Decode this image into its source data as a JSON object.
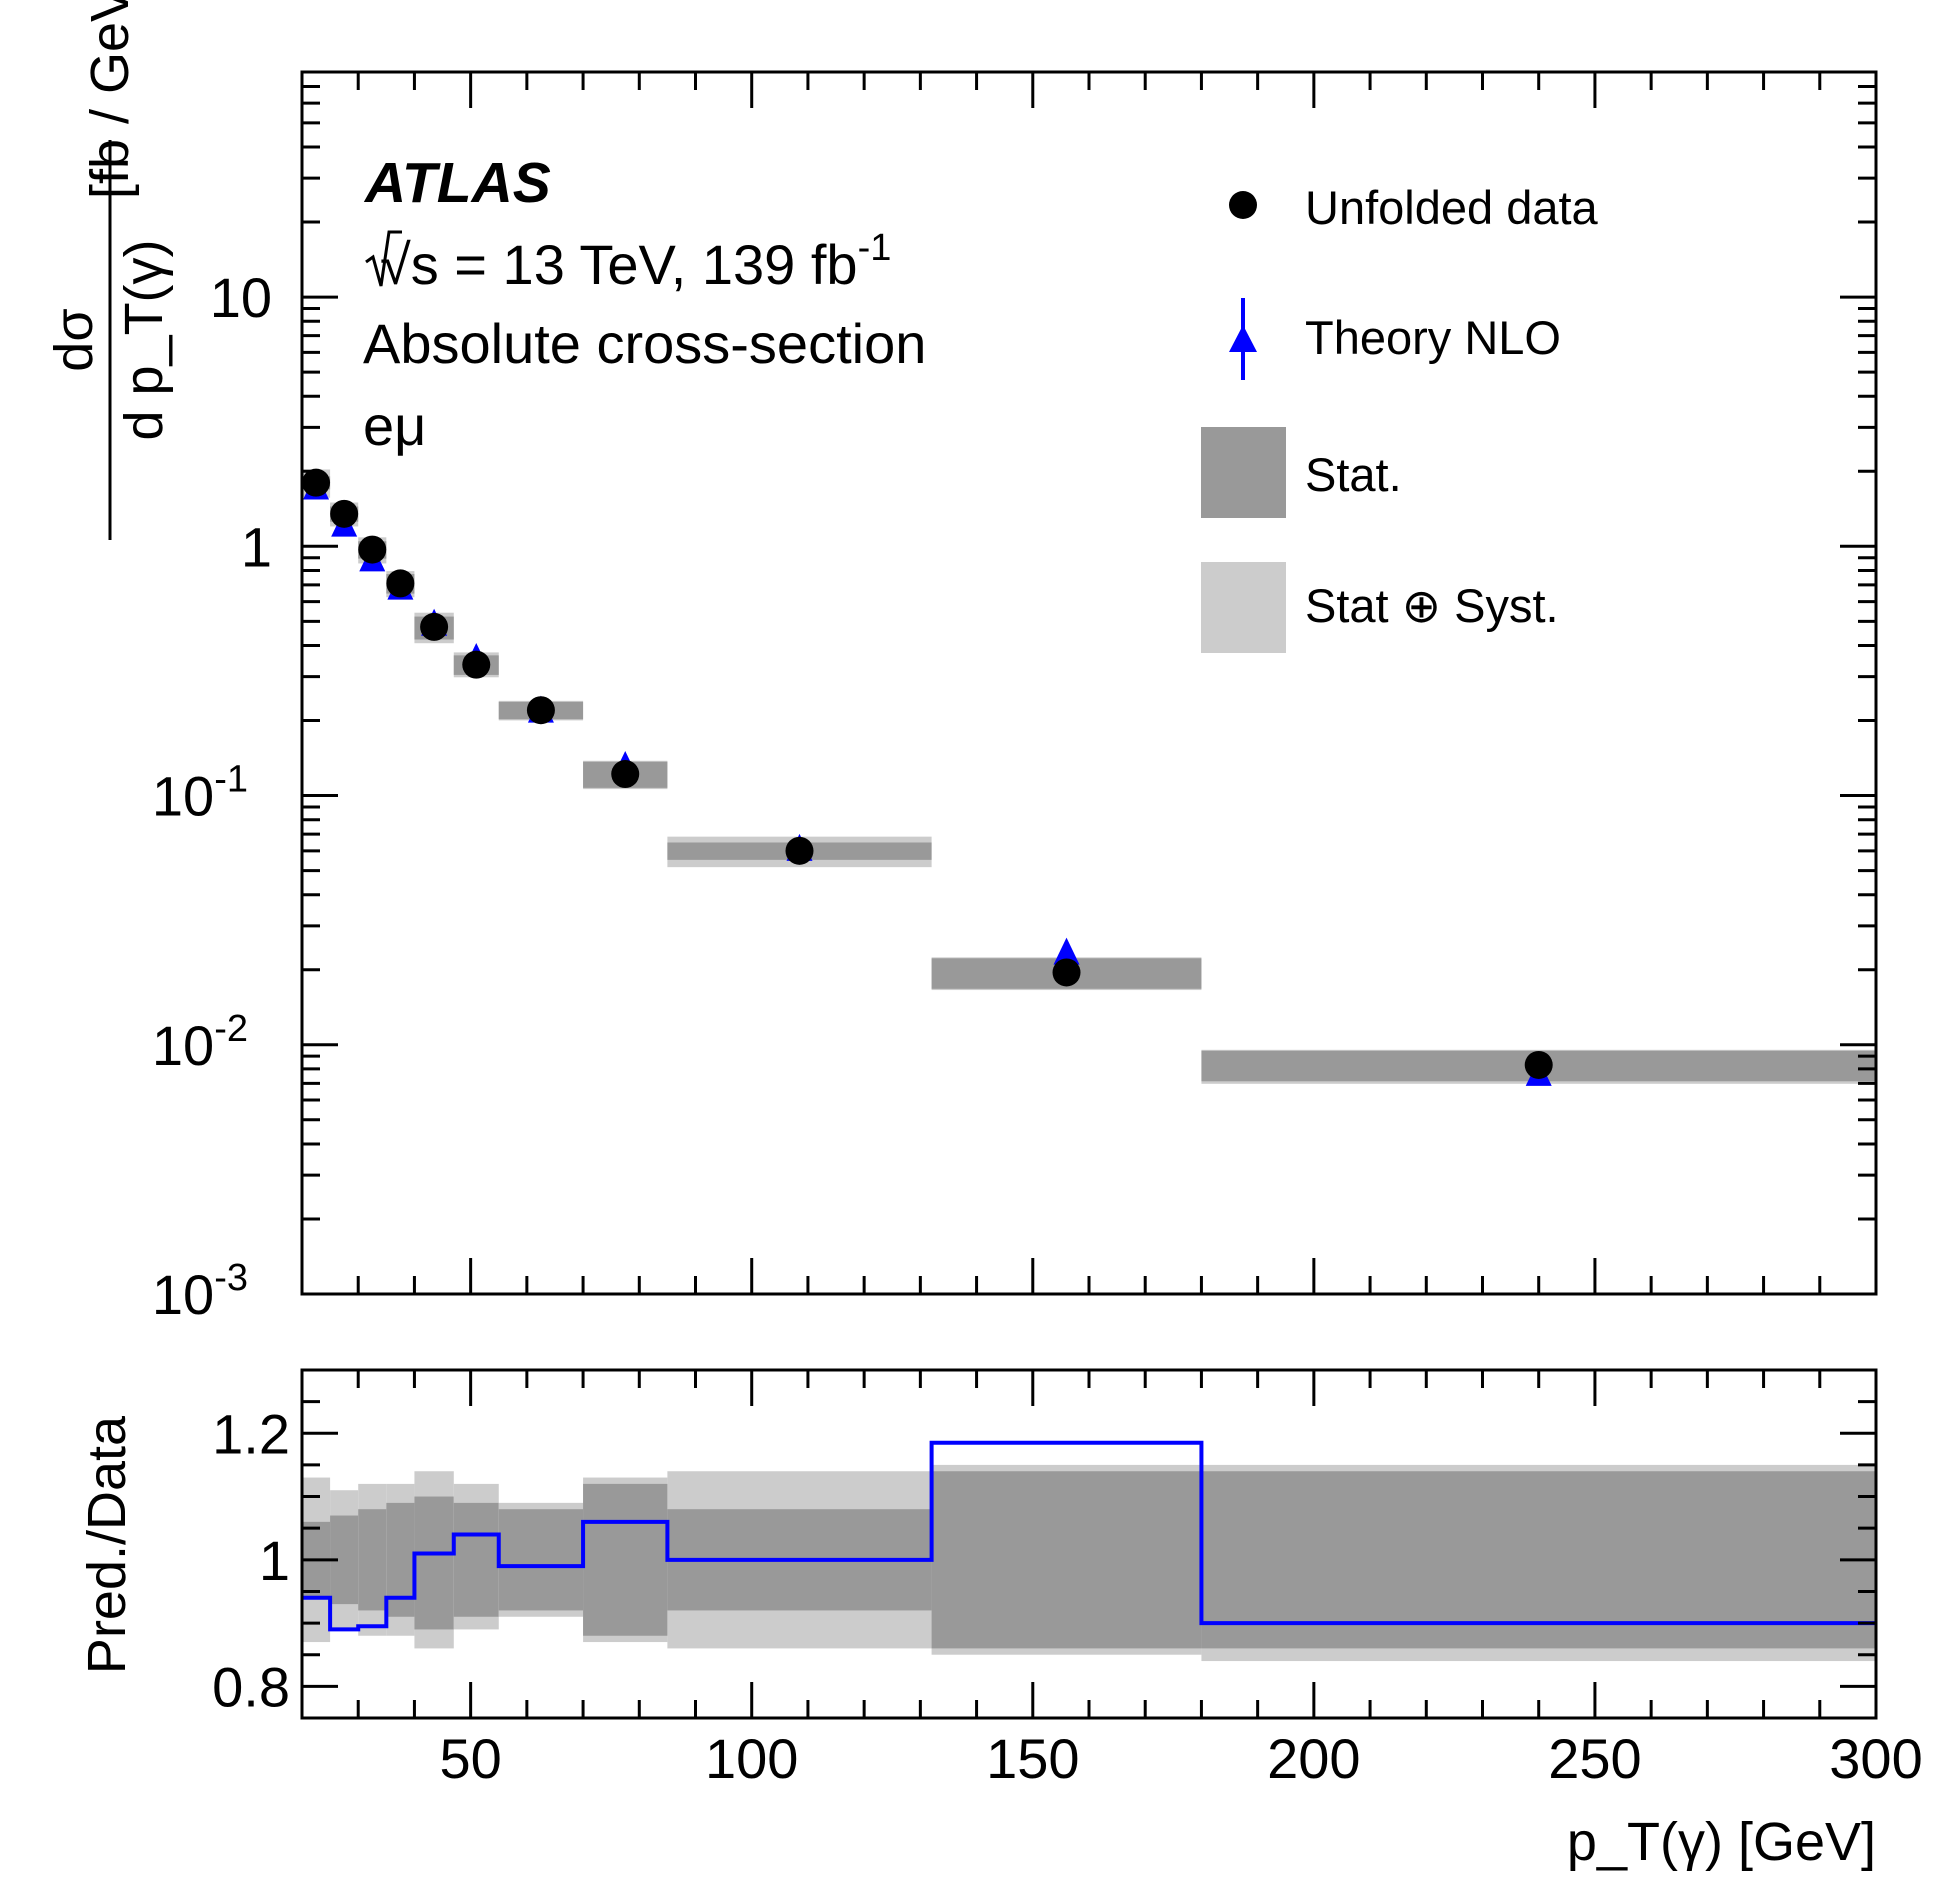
{
  "chart_data": {
    "type": "scatter",
    "experiment_label": "ATLAS",
    "info_lines": [
      "√s = 13 TeV, 139 fb",
      "Absolute cross-section",
      "eμ"
    ],
    "lumi_superscript": "-1",
    "main_panel": {
      "ylabel_numerator": "dσ",
      "ylabel_denominator": "d p_T(γ)",
      "ylabel_unit": "[fb / GeV]",
      "yscale": "log",
      "ylim": [
        0.001,
        80
      ],
      "y_tick_labels": [
        {
          "base": "10",
          "exp": "-3",
          "value": 0.001
        },
        {
          "base": "10",
          "exp": "-2",
          "value": 0.01
        },
        {
          "base": "10",
          "exp": "-1",
          "value": 0.1
        },
        {
          "base": "1",
          "exp": "",
          "value": 1
        },
        {
          "base": "10",
          "exp": "",
          "value": 10
        }
      ]
    },
    "ratio_panel": {
      "ylabel": "Pred./Data",
      "ylim": [
        0.75,
        1.3
      ],
      "y_tick_labels": [
        "0.8",
        "1",
        "1.2"
      ]
    },
    "xlabel": "p_T(γ) [GeV]",
    "xlim": [
      20,
      300
    ],
    "x_tick_labels": [
      "50",
      "100",
      "150",
      "200",
      "250",
      "300"
    ],
    "legend": {
      "placement": "top-right",
      "entries": [
        "Unfolded data",
        "Theory NLO",
        "Stat.",
        "Stat ⊕ Syst."
      ]
    },
    "colors": {
      "data": "#000000",
      "theory": "#0000ff",
      "stat_band": "#999999",
      "syst_band": "#cccccc"
    },
    "bins": [
      {
        "lo": 20,
        "hi": 25,
        "data": 1.8,
        "theory": 1.69,
        "stat": [
          0.94,
          1.06
        ],
        "total": [
          0.87,
          1.13
        ]
      },
      {
        "lo": 25,
        "hi": 30,
        "data": 1.35,
        "theory": 1.2,
        "stat": [
          0.93,
          1.07
        ],
        "total": [
          0.89,
          1.11
        ]
      },
      {
        "lo": 30,
        "hi": 35,
        "data": 0.97,
        "theory": 0.87,
        "stat": [
          0.92,
          1.08
        ],
        "total": [
          0.88,
          1.12
        ]
      },
      {
        "lo": 35,
        "hi": 40,
        "data": 0.71,
        "theory": 0.67,
        "stat": [
          0.91,
          1.09
        ],
        "total": [
          0.88,
          1.12
        ]
      },
      {
        "lo": 40,
        "hi": 47,
        "data": 0.475,
        "theory": 0.48,
        "stat": [
          0.89,
          1.1
        ],
        "total": [
          0.86,
          1.14
        ]
      },
      {
        "lo": 47,
        "hi": 55,
        "data": 0.335,
        "theory": 0.35,
        "stat": [
          0.91,
          1.09
        ],
        "total": [
          0.89,
          1.12
        ]
      },
      {
        "lo": 55,
        "hi": 70,
        "data": 0.22,
        "theory": 0.215,
        "stat": [
          0.92,
          1.08
        ],
        "total": [
          0.91,
          1.09
        ]
      },
      {
        "lo": 70,
        "hi": 85,
        "data": 0.122,
        "theory": 0.129,
        "stat": [
          0.88,
          1.12
        ],
        "total": [
          0.87,
          1.13
        ]
      },
      {
        "lo": 85,
        "hi": 132,
        "data": 0.06,
        "theory": 0.06,
        "stat": [
          0.92,
          1.08
        ],
        "total": [
          0.86,
          1.14
        ]
      },
      {
        "lo": 132,
        "hi": 180,
        "data": 0.0195,
        "theory": 0.023,
        "stat": [
          0.86,
          1.14
        ],
        "total": [
          0.85,
          1.15
        ]
      },
      {
        "lo": 180,
        "hi": 300,
        "data": 0.0083,
        "theory": 0.0075,
        "stat": [
          0.86,
          1.14
        ],
        "total": [
          0.84,
          1.15
        ]
      }
    ],
    "ratio_values": [
      0.94,
      0.89,
      0.895,
      0.94,
      1.01,
      1.04,
      0.99,
      1.06,
      1.0,
      1.185,
      0.9
    ]
  }
}
